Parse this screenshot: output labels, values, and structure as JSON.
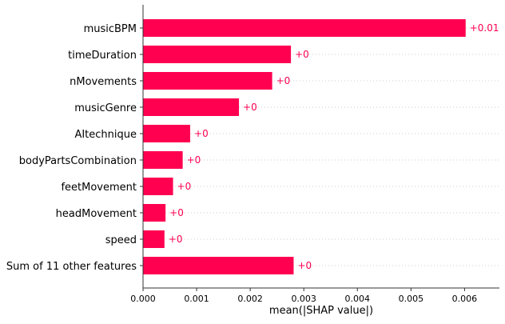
{
  "chart_data": {
    "type": "bar",
    "orientation": "horizontal",
    "categories": [
      "musicBPM",
      "timeDuration",
      "nMovements",
      "musicGenre",
      "AItechnique",
      "bodyPartsCombination",
      "feetMovement",
      "headMovement",
      "speed",
      "Sum of 11 other features"
    ],
    "values": [
      0.00602,
      0.00276,
      0.00241,
      0.00179,
      0.00088,
      0.00074,
      0.00056,
      0.00042,
      0.0004,
      0.00281
    ],
    "data_labels": [
      "+0.01",
      "+0",
      "+0",
      "+0",
      "+0",
      "+0",
      "+0",
      "+0",
      "+0",
      "+0"
    ],
    "title": "",
    "xlabel": "mean(|SHAP value|)",
    "ylabel": "",
    "xlim": [
      0,
      0.00665
    ],
    "xticks": [
      0,
      0.001,
      0.002,
      0.003,
      0.004,
      0.005,
      0.006
    ],
    "xtick_labels": [
      "0.000",
      "0.001",
      "0.002",
      "0.003",
      "0.004",
      "0.005",
      "0.006"
    ],
    "grid": "horizontal dotted row guides",
    "colors": {
      "bar": "#ff0051",
      "label": "#ff0051",
      "axis": "#333333",
      "grid": "#cccccc",
      "text": "#000000"
    }
  }
}
